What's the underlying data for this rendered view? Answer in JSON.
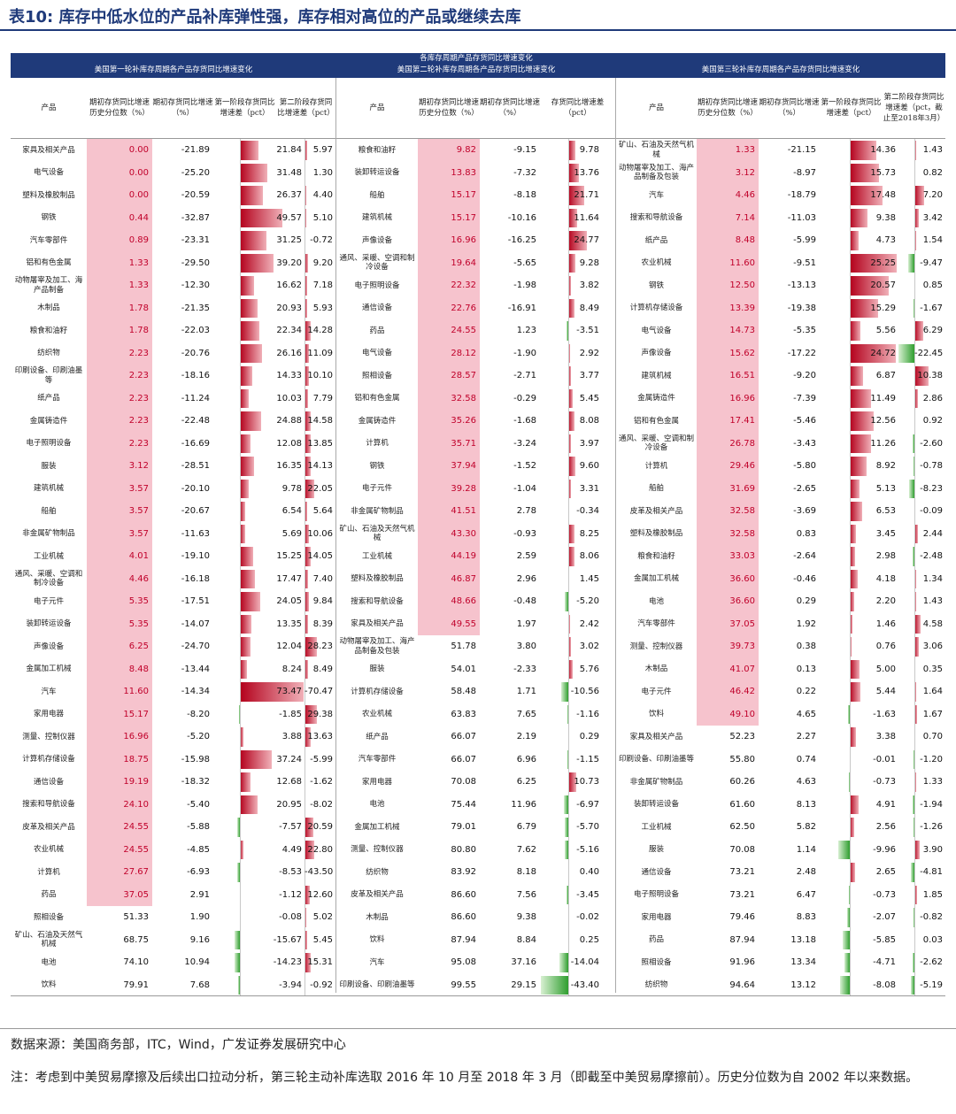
{
  "title": "表10: 库存中低水位的产品补库弹性强，库存相对高位的产品或继续去库",
  "header": {
    "band_top": "各库存周期产品存货同比增速变化",
    "band1": "美国第一轮补库存周期各产品存货同比增速变化",
    "band2": "美国第二轮补库存周期各产品存货同比增速变化",
    "band3": "美国第三轮补库存周期各产品存货同比增速变化",
    "columns": {
      "product": "产品",
      "pct": "期初存货同比增速历史分位数（%）",
      "yoy": "期初存货同比增速（%）",
      "d1": "第一阶段存货同比增速差（pct）",
      "d2_1": "第二阶段存货同比增速差（pct）",
      "d2_2": "存货同比增速差（pct）",
      "d2_3": "第二阶段存货同比增速差（pct，截止至2018年3月）"
    }
  },
  "panels": [
    {
      "rows": [
        [
          "家具及相关产品",
          "0.00",
          "-21.89",
          "21.84",
          "5.97"
        ],
        [
          "电气设备",
          "0.00",
          "-25.20",
          "31.48",
          "1.30"
        ],
        [
          "塑料及橡胶制品",
          "0.00",
          "-20.59",
          "26.37",
          "4.40"
        ],
        [
          "钢铁",
          "0.44",
          "-32.87",
          "49.57",
          "5.10"
        ],
        [
          "汽车零部件",
          "0.89",
          "-23.31",
          "31.25",
          "-0.72"
        ],
        [
          "铝和有色金属",
          "1.33",
          "-29.50",
          "39.20",
          "9.20"
        ],
        [
          "动物屠宰及加工、海产品制备",
          "1.33",
          "-12.30",
          "16.62",
          "7.18"
        ],
        [
          "木制品",
          "1.78",
          "-21.35",
          "20.93",
          "5.93"
        ],
        [
          "粮食和油籽",
          "1.78",
          "-22.03",
          "22.34",
          "14.28"
        ],
        [
          "纺织物",
          "2.23",
          "-20.76",
          "26.16",
          "11.09"
        ],
        [
          "印刷设备、印刷油墨等",
          "2.23",
          "-18.16",
          "14.33",
          "10.10"
        ],
        [
          "纸产品",
          "2.23",
          "-11.24",
          "10.03",
          "7.79"
        ],
        [
          "金属铸造件",
          "2.23",
          "-22.48",
          "24.88",
          "14.58"
        ],
        [
          "电子照明设备",
          "2.23",
          "-16.69",
          "12.08",
          "13.85"
        ],
        [
          "服装",
          "3.12",
          "-28.51",
          "16.35",
          "14.13"
        ],
        [
          "建筑机械",
          "3.57",
          "-20.10",
          "9.78",
          "22.05"
        ],
        [
          "船舶",
          "3.57",
          "-20.67",
          "6.54",
          "5.64"
        ],
        [
          "非金属矿物制品",
          "3.57",
          "-11.63",
          "5.69",
          "10.06"
        ],
        [
          "工业机械",
          "4.01",
          "-19.10",
          "15.25",
          "14.05"
        ],
        [
          "通风、采暖、空调和制冷设备",
          "4.46",
          "-16.18",
          "17.47",
          "7.40"
        ],
        [
          "电子元件",
          "5.35",
          "-17.51",
          "24.05",
          "9.84"
        ],
        [
          "装卸转运设备",
          "5.35",
          "-14.07",
          "13.35",
          "8.39"
        ],
        [
          "声像设备",
          "6.25",
          "-24.70",
          "12.04",
          "28.23"
        ],
        [
          "金属加工机械",
          "8.48",
          "-13.44",
          "8.24",
          "8.49"
        ],
        [
          "汽车",
          "11.60",
          "-14.34",
          "73.47",
          "-70.47"
        ],
        [
          "家用电器",
          "15.17",
          "-8.20",
          "-1.85",
          "29.38"
        ],
        [
          "测量、控制仪器",
          "16.96",
          "-5.20",
          "3.88",
          "13.63"
        ],
        [
          "计算机存储设备",
          "18.75",
          "-15.98",
          "37.24",
          "-5.99"
        ],
        [
          "通信设备",
          "19.19",
          "-18.32",
          "12.68",
          "-1.62"
        ],
        [
          "搜索和导航设备",
          "24.10",
          "-5.40",
          "20.95",
          "-8.02"
        ],
        [
          "皮革及相关产品",
          "24.55",
          "-5.88",
          "-7.57",
          "20.59"
        ],
        [
          "农业机械",
          "24.55",
          "-4.85",
          "4.49",
          "22.80"
        ],
        [
          "计算机",
          "27.67",
          "-6.93",
          "-8.53",
          "-43.50"
        ],
        [
          "药品",
          "37.05",
          "2.91",
          "-1.12",
          "12.60"
        ],
        [
          "照相设备",
          "51.33",
          "1.90",
          "-0.08",
          "5.02"
        ],
        [
          "矿山、石油及天然气机械",
          "68.75",
          "9.16",
          "-15.67",
          "5.45"
        ],
        [
          "电池",
          "74.10",
          "10.94",
          "-14.23",
          "15.31"
        ],
        [
          "饮料",
          "79.91",
          "7.68",
          "-3.94",
          "-0.92"
        ]
      ]
    },
    {
      "rows": [
        [
          "粮食和油籽",
          "9.82",
          "-9.15",
          "9.78"
        ],
        [
          "装卸转运设备",
          "13.83",
          "-7.32",
          "13.76"
        ],
        [
          "船舶",
          "15.17",
          "-8.18",
          "21.71"
        ],
        [
          "建筑机械",
          "15.17",
          "-10.16",
          "11.64"
        ],
        [
          "声像设备",
          "16.96",
          "-16.25",
          "24.77"
        ],
        [
          "通风、采暖、空调和制冷设备",
          "19.64",
          "-5.65",
          "9.28"
        ],
        [
          "电子照明设备",
          "22.32",
          "-1.98",
          "3.82"
        ],
        [
          "通信设备",
          "22.76",
          "-16.91",
          "8.49"
        ],
        [
          "药品",
          "24.55",
          "1.23",
          "-3.51"
        ],
        [
          "电气设备",
          "28.12",
          "-1.90",
          "2.92"
        ],
        [
          "照相设备",
          "28.57",
          "-2.71",
          "3.77"
        ],
        [
          "铝和有色金属",
          "32.58",
          "-0.29",
          "5.45"
        ],
        [
          "金属铸造件",
          "35.26",
          "-1.68",
          "8.08"
        ],
        [
          "计算机",
          "35.71",
          "-3.24",
          "3.97"
        ],
        [
          "钢铁",
          "37.94",
          "-1.52",
          "9.60"
        ],
        [
          "电子元件",
          "39.28",
          "-1.04",
          "3.31"
        ],
        [
          "非金属矿物制品",
          "41.51",
          "2.78",
          "-0.34"
        ],
        [
          "矿山、石油及天然气机械",
          "43.30",
          "-0.93",
          "8.25"
        ],
        [
          "工业机械",
          "44.19",
          "2.59",
          "8.06"
        ],
        [
          "塑料及橡胶制品",
          "46.87",
          "2.96",
          "1.45"
        ],
        [
          "搜索和导航设备",
          "48.66",
          "-0.48",
          "-5.20"
        ],
        [
          "家具及相关产品",
          "49.55",
          "1.97",
          "2.42"
        ],
        [
          "动物屠宰及加工、海产品制备及包装",
          "51.78",
          "3.80",
          "3.02"
        ],
        [
          "服装",
          "54.01",
          "-2.33",
          "5.76"
        ],
        [
          "计算机存储设备",
          "58.48",
          "1.71",
          "-10.56"
        ],
        [
          "农业机械",
          "63.83",
          "7.65",
          "-1.16"
        ],
        [
          "纸产品",
          "66.07",
          "2.19",
          "0.29"
        ],
        [
          "汽车零部件",
          "66.07",
          "6.96",
          "-1.15"
        ],
        [
          "家用电器",
          "70.08",
          "6.25",
          "10.73"
        ],
        [
          "电池",
          "75.44",
          "11.96",
          "-6.97"
        ],
        [
          "金属加工机械",
          "79.01",
          "6.79",
          "-5.70"
        ],
        [
          "测量、控制仪器",
          "80.80",
          "7.62",
          "-5.16"
        ],
        [
          "纺织物",
          "83.92",
          "8.18",
          "0.40"
        ],
        [
          "皮革及相关产品",
          "86.60",
          "7.56",
          "-3.45"
        ],
        [
          "木制品",
          "86.60",
          "9.38",
          "-0.02"
        ],
        [
          "饮料",
          "87.94",
          "8.84",
          "0.25"
        ],
        [
          "汽车",
          "95.08",
          "37.16",
          "-14.04"
        ],
        [
          "印刷设备、印刷油墨等",
          "99.55",
          "29.15",
          "-43.40"
        ]
      ]
    },
    {
      "rows": [
        [
          "矿山、石油及天然气机械",
          "1.33",
          "-21.15",
          "14.36",
          "1.43"
        ],
        [
          "动物屠宰及加工、海产品制备及包装",
          "3.12",
          "-8.97",
          "15.73",
          "0.82"
        ],
        [
          "汽车",
          "4.46",
          "-18.79",
          "17.48",
          "7.20"
        ],
        [
          "搜索和导航设备",
          "7.14",
          "-11.03",
          "9.38",
          "3.42"
        ],
        [
          "纸产品",
          "8.48",
          "-5.99",
          "4.73",
          "1.54"
        ],
        [
          "农业机械",
          "11.60",
          "-9.51",
          "25.25",
          "-9.47"
        ],
        [
          "钢铁",
          "12.50",
          "-13.13",
          "20.57",
          "0.85"
        ],
        [
          "计算机存储设备",
          "13.39",
          "-19.38",
          "15.29",
          "-1.67"
        ],
        [
          "电气设备",
          "14.73",
          "-5.35",
          "5.56",
          "6.29"
        ],
        [
          "声像设备",
          "15.62",
          "-17.22",
          "24.72",
          "-22.45"
        ],
        [
          "建筑机械",
          "16.51",
          "-9.20",
          "6.87",
          "10.38"
        ],
        [
          "金属铸造件",
          "16.96",
          "-7.39",
          "11.49",
          "2.86"
        ],
        [
          "铝和有色金属",
          "17.41",
          "-5.46",
          "12.56",
          "0.92"
        ],
        [
          "通风、采暖、空调和制冷设备",
          "26.78",
          "-3.43",
          "11.26",
          "-2.60"
        ],
        [
          "计算机",
          "29.46",
          "-5.80",
          "8.92",
          "-0.78"
        ],
        [
          "船舶",
          "31.69",
          "-2.65",
          "5.13",
          "-8.23"
        ],
        [
          "皮革及相关产品",
          "32.58",
          "-3.69",
          "6.53",
          "-0.09"
        ],
        [
          "塑料及橡胶制品",
          "32.58",
          "0.83",
          "3.45",
          "2.44"
        ],
        [
          "粮食和油籽",
          "33.03",
          "-2.64",
          "2.98",
          "-2.48"
        ],
        [
          "金属加工机械",
          "36.60",
          "-0.46",
          "4.18",
          "1.34"
        ],
        [
          "电池",
          "36.60",
          "0.29",
          "2.20",
          "1.43"
        ],
        [
          "汽车零部件",
          "37.05",
          "1.92",
          "1.46",
          "4.58"
        ],
        [
          "测量、控制仪器",
          "39.73",
          "0.38",
          "0.76",
          "3.06"
        ],
        [
          "木制品",
          "41.07",
          "0.13",
          "5.00",
          "0.35"
        ],
        [
          "电子元件",
          "46.42",
          "0.22",
          "5.44",
          "1.64"
        ],
        [
          "饮料",
          "49.10",
          "4.65",
          "-1.63",
          "1.67"
        ],
        [
          "家具及相关产品",
          "52.23",
          "2.27",
          "3.38",
          "0.70"
        ],
        [
          "印刷设备、印刷油墨等",
          "55.80",
          "0.74",
          "-0.01",
          "-1.20"
        ],
        [
          "非金属矿物制品",
          "60.26",
          "4.63",
          "-0.73",
          "1.33"
        ],
        [
          "装卸转运设备",
          "61.60",
          "8.13",
          "4.91",
          "-1.94"
        ],
        [
          "工业机械",
          "62.50",
          "5.82",
          "2.56",
          "-1.26"
        ],
        [
          "服装",
          "70.08",
          "1.14",
          "-9.96",
          "3.90"
        ],
        [
          "通信设备",
          "73.21",
          "2.48",
          "2.65",
          "-4.81"
        ],
        [
          "电子照明设备",
          "73.21",
          "6.47",
          "-0.73",
          "1.85"
        ],
        [
          "家用电器",
          "79.46",
          "8.83",
          "-2.07",
          "-0.82"
        ],
        [
          "药品",
          "87.94",
          "13.18",
          "-5.85",
          "0.03"
        ],
        [
          "照相设备",
          "91.96",
          "13.34",
          "-4.71",
          "-2.62"
        ],
        [
          "纺织物",
          "94.64",
          "13.12",
          "-8.08",
          "-5.19"
        ]
      ]
    }
  ],
  "notes": {
    "source": "数据来源：美国商务部，ITC，Wind，广发证券发展研究中心",
    "note": "注：考虑到中美贸易摩擦及后续出口拉动分析，第三轮主动补库选取 2016 年 10 月至 2018 年 3 月（即截至中美贸易摩擦前）。历史分位数为自 2002 年以来数据。"
  },
  "colors": {
    "header_bg": "#1f3a7a",
    "highlight_pink": "#f6c3cd",
    "bar_red": "#b3001b",
    "bar_green": "#2f9e2f"
  }
}
